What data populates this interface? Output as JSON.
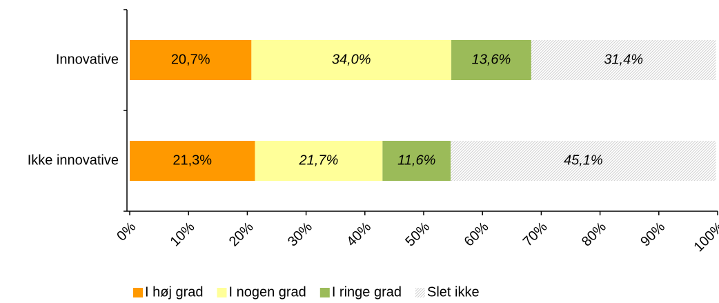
{
  "chart_data": {
    "type": "stacked_barh",
    "categories": [
      "Innovative",
      "Ikke innovative"
    ],
    "series": [
      {
        "name": "I høj grad",
        "color": "#ff9900",
        "values": [
          20.7,
          21.3
        ],
        "value_labels": [
          "20,7%",
          "21,3%"
        ]
      },
      {
        "name": "I nogen grad",
        "color": "#ffff99",
        "values": [
          34.0,
          21.7
        ],
        "value_labels": [
          "34,0%",
          "21,7%"
        ]
      },
      {
        "name": "I ringe grad",
        "color": "#9bbb59",
        "values": [
          13.6,
          11.6
        ],
        "value_labels": [
          "13,6%",
          "11,6%"
        ]
      },
      {
        "name": "Slet ikke",
        "color": "#d0d0d0",
        "pattern": "hatch",
        "values": [
          31.4,
          45.1
        ],
        "value_labels": [
          "31,4%",
          "45,1%"
        ]
      }
    ],
    "xlim": [
      0,
      100
    ],
    "xticks": [
      {
        "value": 0,
        "label": "0%"
      },
      {
        "value": 10,
        "label": "10%"
      },
      {
        "value": 20,
        "label": "20%"
      },
      {
        "value": 30,
        "label": "30%"
      },
      {
        "value": 40,
        "label": "40%"
      },
      {
        "value": 50,
        "label": "50%"
      },
      {
        "value": 60,
        "label": "60%"
      },
      {
        "value": 70,
        "label": "70%"
      },
      {
        "value": 80,
        "label": "80%"
      },
      {
        "value": 90,
        "label": "90%"
      },
      {
        "value": 100,
        "label": "100%"
      }
    ],
    "legend": "bottom"
  }
}
